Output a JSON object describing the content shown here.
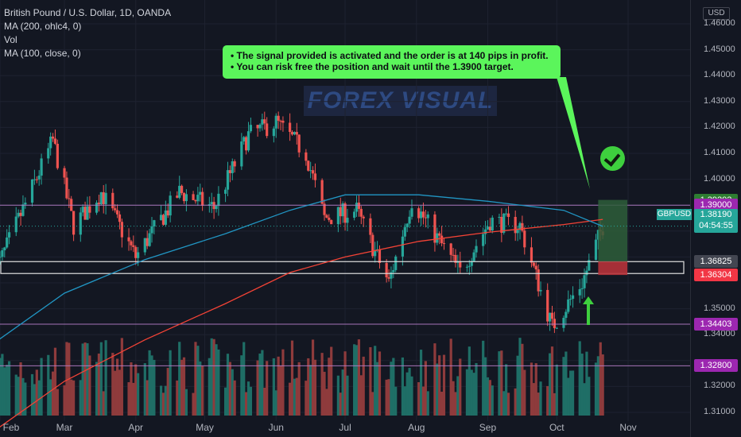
{
  "legend": {
    "title": "British Pound / U.S. Dollar, 1D, OANDA",
    "indicator1": "MA (200, ohlc4, 0)",
    "indicator2": "Vol",
    "indicator3": "MA (100, close, 0)"
  },
  "callout": {
    "line1": "• The signal provided is activated and the order is at 140 pips in profit.",
    "line2": "• You can risk free the position and wait until the 1.3900 target."
  },
  "watermark": "FOREX VISUAL",
  "currency": "USD",
  "symbol_tag": "GBPUSD",
  "current_price": "1.38190",
  "countdown": "04:54:55",
  "price_labels": [
    {
      "text": "1.39202",
      "price": 1.39202,
      "bg": "#2e7d32",
      "fg": "#ffffff"
    },
    {
      "text": "1.39000",
      "price": 1.39,
      "bg": "#9c27b0",
      "fg": "#ffffff"
    },
    {
      "text": "1.36825",
      "price": 1.36825,
      "bg": "#434651",
      "fg": "#ffffff"
    },
    {
      "text": "1.36304",
      "price": 1.36304,
      "bg": "#f23645",
      "fg": "#ffffff"
    },
    {
      "text": "1.34403",
      "price": 1.34403,
      "bg": "#9c27b0",
      "fg": "#ffffff"
    },
    {
      "text": "1.32800",
      "price": 1.328,
      "bg": "#9c27b0",
      "fg": "#ffffff"
    }
  ],
  "colors": {
    "up": "#26a69a",
    "down": "#ef5350",
    "ma200": "#f44336",
    "ma100": "#2196c4",
    "hline": "#b67ec9",
    "profit_zone": "#2e5e3a",
    "loss_zone": "#b7323a",
    "callout": "#5bf55b"
  },
  "chart_data": {
    "type": "candlestick",
    "symbol": "GBPUSD",
    "timeframe": "1D",
    "ylim": [
      1.3076,
      1.4612
    ],
    "y_ticks": [
      "1.46000",
      "1.45000",
      "1.44000",
      "1.43000",
      "1.42000",
      "1.41000",
      "1.40000",
      "1.35000",
      "1.34000",
      "1.32000",
      "1.31000"
    ],
    "x_ticks": [
      "Feb",
      "Mar",
      "Apr",
      "May",
      "Jun",
      "Jul",
      "Aug",
      "Sep",
      "Oct",
      "Nov"
    ],
    "price_path": [
      {
        "date": "2021-02-01",
        "close": 1.368
      },
      {
        "date": "2021-02-24",
        "close": 1.415
      },
      {
        "date": "2021-03-05",
        "close": 1.382
      },
      {
        "date": "2021-03-17",
        "close": 1.395
      },
      {
        "date": "2021-04-01",
        "close": 1.37
      },
      {
        "date": "2021-04-20",
        "close": 1.395
      },
      {
        "date": "2021-05-05",
        "close": 1.389
      },
      {
        "date": "2021-05-20",
        "close": 1.417
      },
      {
        "date": "2021-06-01",
        "close": 1.422
      },
      {
        "date": "2021-06-14",
        "close": 1.41
      },
      {
        "date": "2021-06-22",
        "close": 1.385
      },
      {
        "date": "2021-07-06",
        "close": 1.388
      },
      {
        "date": "2021-07-20",
        "close": 1.36
      },
      {
        "date": "2021-07-30",
        "close": 1.392
      },
      {
        "date": "2021-08-20",
        "close": 1.364
      },
      {
        "date": "2021-09-02",
        "close": 1.384
      },
      {
        "date": "2021-09-15",
        "close": 1.382
      },
      {
        "date": "2021-09-29",
        "close": 1.343
      },
      {
        "date": "2021-10-12",
        "close": 1.36
      },
      {
        "date": "2021-10-21",
        "close": 1.3819
      }
    ],
    "ma100": [
      {
        "date": "2021-01-25",
        "value": 1.334
      },
      {
        "date": "2021-03-01",
        "value": 1.356
      },
      {
        "date": "2021-04-05",
        "value": 1.369
      },
      {
        "date": "2021-05-10",
        "value": 1.379
      },
      {
        "date": "2021-06-07",
        "value": 1.388
      },
      {
        "date": "2021-07-01",
        "value": 1.394
      },
      {
        "date": "2021-08-02",
        "value": 1.394
      },
      {
        "date": "2021-09-01",
        "value": 1.3915
      },
      {
        "date": "2021-10-04",
        "value": 1.388
      },
      {
        "date": "2021-10-21",
        "value": 1.3818
      }
    ],
    "ma200": [
      {
        "date": "2021-01-25",
        "value": 1.3
      },
      {
        "date": "2021-03-01",
        "value": 1.322
      },
      {
        "date": "2021-04-05",
        "value": 1.338
      },
      {
        "date": "2021-05-10",
        "value": 1.352
      },
      {
        "date": "2021-06-07",
        "value": 1.364
      },
      {
        "date": "2021-07-01",
        "value": 1.37
      },
      {
        "date": "2021-08-02",
        "value": 1.376
      },
      {
        "date": "2021-09-01",
        "value": 1.3795
      },
      {
        "date": "2021-10-04",
        "value": 1.3825
      },
      {
        "date": "2021-10-21",
        "value": 1.3845
      }
    ],
    "horizontal_lines": [
      1.39,
      1.34403,
      1.328
    ],
    "zone_band": [
      1.363,
      1.3682
    ],
    "position": {
      "entry": 1.36825,
      "stop": 1.36304,
      "target": 1.39202
    }
  }
}
